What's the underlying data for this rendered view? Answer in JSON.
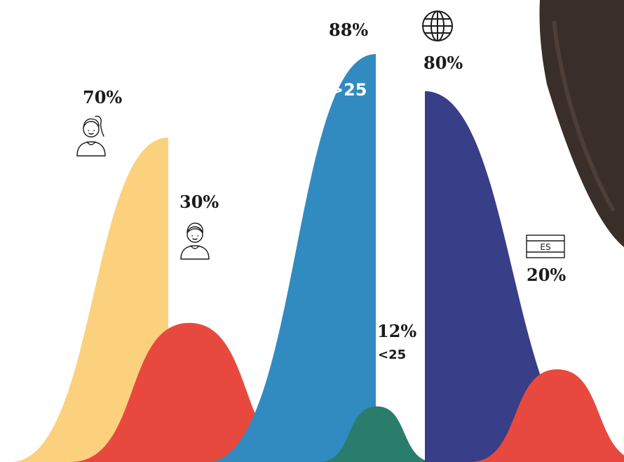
{
  "chart_data": {
    "type": "area",
    "groups": [
      {
        "series": [
          {
            "value": 70,
            "label": "70%",
            "color": "#fcd17e",
            "icon": "woman-icon"
          },
          {
            "value": 30,
            "label": "30%",
            "color": "#e8493e",
            "icon": "man-icon"
          }
        ]
      },
      {
        "series": [
          {
            "value": 88,
            "label": "88%",
            "tag": ">25",
            "color": "#318bc0",
            "icon": "globe-icon"
          },
          {
            "value": 12,
            "label": "12%",
            "tag": "<25",
            "color": "#2a7c6c"
          }
        ]
      },
      {
        "series": [
          {
            "value": 80,
            "label": "80%",
            "color": "#383e87"
          },
          {
            "value": 20,
            "label": "20%",
            "color": "#e8493e",
            "icon": "es-flag-icon",
            "flag_text": "ES"
          }
        ]
      }
    ],
    "photo_color": "#3a2e29"
  }
}
